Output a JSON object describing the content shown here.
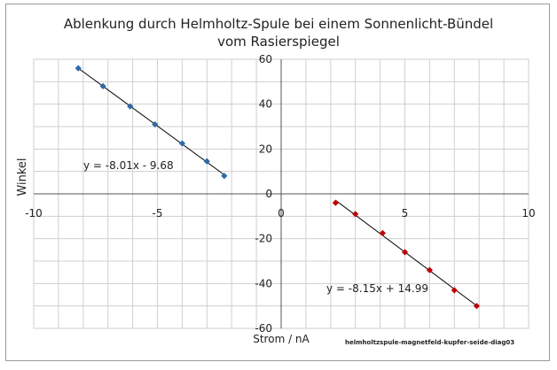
{
  "chart_data": {
    "type": "scatter",
    "title_line1": "Ablenkung durch Helmholtz-Spule bei einem Sonnenlicht-Bündel",
    "title_line2": "vom Rasierspiegel",
    "xlabel": "Strom / nA",
    "ylabel": "Winkel",
    "xlim": [
      -10,
      10
    ],
    "ylim": [
      -60,
      60
    ],
    "x_ticks": [
      "-10",
      "-5",
      "0",
      "5",
      "10"
    ],
    "y_ticks": [
      "60",
      "40",
      "20",
      "0",
      "-20",
      "-40",
      "-60"
    ],
    "grid": true,
    "series": [
      {
        "color": "#2e6aa8",
        "x": [
          -8.2,
          -7.2,
          -6.1,
          -5.1,
          -4.0,
          -3.0,
          -2.3
        ],
        "y": [
          56,
          48,
          39,
          31,
          22.5,
          14.5,
          8
        ],
        "trend_label": "y = -8.01x - 9.68"
      },
      {
        "color": "#c00000",
        "x": [
          2.2,
          3.0,
          4.1,
          5.0,
          6.0,
          7.0,
          7.9
        ],
        "y": [
          -4,
          -9,
          -17.5,
          -26,
          -34,
          -43,
          -50
        ],
        "trend_label": "y = -8.15x + 14.99"
      }
    ],
    "footnote": "helmholtzspule-magnetfeld-kupfer-seide-diag03"
  }
}
